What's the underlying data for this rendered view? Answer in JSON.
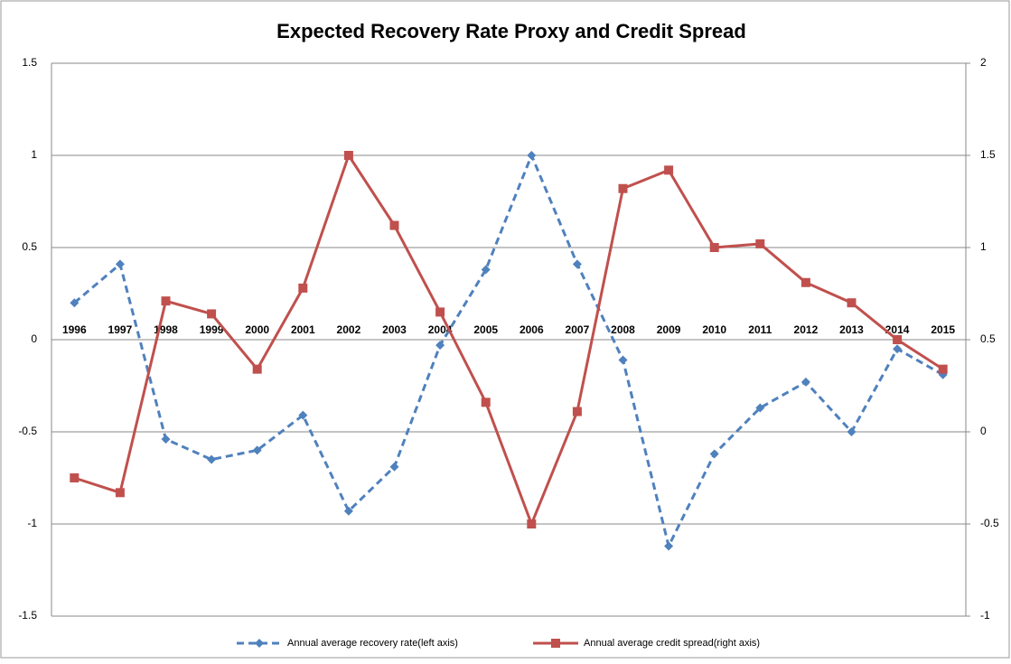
{
  "chart_data": {
    "type": "line",
    "title": "Expected  Recovery Rate Proxy and Credit Spread",
    "categories": [
      "1996",
      "1997",
      "1998",
      "1999",
      "2000",
      "2001",
      "2002",
      "2003",
      "2004",
      "2005",
      "2006",
      "2007",
      "2008",
      "2009",
      "2010",
      "2011",
      "2012",
      "2013",
      "2014",
      "2015"
    ],
    "series": [
      {
        "name": "Annual average recovery rate(left axis)",
        "color": "#4f81bd",
        "dash": true,
        "marker": "diamond",
        "values": [
          0.2,
          0.41,
          -0.54,
          -0.65,
          -0.6,
          -0.41,
          -0.93,
          -0.69,
          -0.03,
          0.38,
          1.0,
          0.41,
          -0.11,
          -1.12,
          -0.62,
          -0.37,
          -0.23,
          -0.5,
          -0.05,
          -0.19
        ]
      },
      {
        "name": "Annual average credit spread(right axis)",
        "color": "#c0504d",
        "dash": false,
        "marker": "square",
        "axis": "y2",
        "values": [
          -0.25,
          -0.33,
          0.71,
          0.64,
          0.34,
          0.78,
          1.5,
          1.12,
          0.65,
          0.16,
          -0.5,
          0.11,
          1.32,
          1.42,
          1.0,
          1.02,
          0.81,
          0.7,
          0.5,
          0.34
        ]
      }
    ],
    "ylim": [
      -1.5,
      1.5
    ],
    "yticks": [
      -1.5,
      -1,
      -0.5,
      0,
      0.5,
      1,
      1.5
    ],
    "y2lim": [
      -1,
      2
    ],
    "y2ticks": [
      -1,
      -0.5,
      0,
      0.5,
      1,
      1.5,
      2
    ],
    "grid": true,
    "legend": "bottom"
  }
}
